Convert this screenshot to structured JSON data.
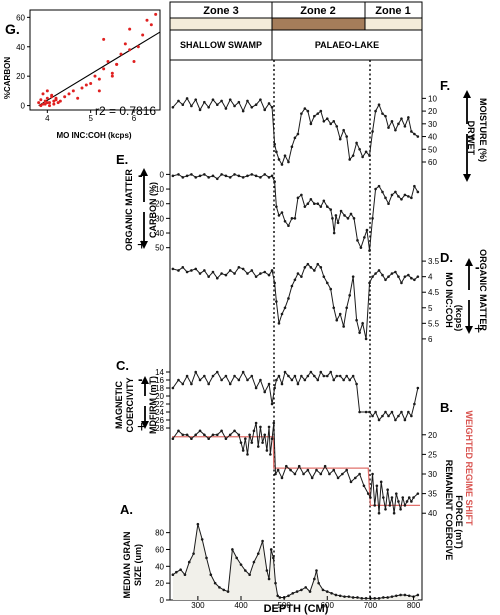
{
  "figure": {
    "zones": [
      {
        "label": "Zone 3",
        "depth_range": [
          240,
          475
        ]
      },
      {
        "label": "Zone 2",
        "depth_range": [
          475,
          695
        ]
      },
      {
        "label": "Zone 1",
        "depth_range": [
          695,
          815
        ]
      }
    ],
    "environments": [
      {
        "label": "SHALLOW SWAMP",
        "depth_range": [
          240,
          475
        ]
      },
      {
        "label": "PALAEO-LAKE",
        "depth_range": [
          475,
          815
        ]
      }
    ],
    "zone_boundaries_cm": [
      475,
      695
    ],
    "x_axis": {
      "label": "DEPTH (CM)",
      "range": [
        240,
        815
      ],
      "ticks": [
        "300",
        "400",
        "500",
        "600",
        "700",
        "800"
      ]
    }
  },
  "chart_data": [
    {
      "id": "F",
      "panel_letter": "F.",
      "type": "line",
      "label_lines": [
        "DRY",
        "MOISTURE (%)",
        "WET"
      ],
      "ylim": [
        60,
        5
      ],
      "y_ticks": [
        "10",
        "20",
        "30",
        "40",
        "50",
        "60"
      ],
      "x": [
        242,
        255,
        265,
        275,
        285,
        295,
        305,
        315,
        325,
        335,
        345,
        355,
        365,
        375,
        385,
        395,
        405,
        415,
        425,
        435,
        445,
        455,
        465,
        472,
        478,
        482,
        488,
        495,
        502,
        510,
        518,
        525,
        532,
        540,
        548,
        555,
        562,
        570,
        578,
        585,
        592,
        600,
        608,
        615,
        622,
        630,
        638,
        645,
        652,
        660,
        668,
        675,
        682,
        690,
        698,
        705,
        712,
        720,
        728,
        735,
        742,
        750,
        758,
        765,
        772,
        780,
        788,
        795,
        802,
        810
      ],
      "values": [
        17,
        12,
        15,
        10,
        16,
        11,
        19,
        13,
        17,
        11,
        15,
        12,
        18,
        11,
        16,
        13,
        20,
        12,
        17,
        15,
        11,
        19,
        14,
        17,
        46,
        52,
        58,
        62,
        55,
        60,
        48,
        41,
        38,
        22,
        18,
        20,
        30,
        24,
        22,
        20,
        28,
        26,
        30,
        28,
        32,
        42,
        35,
        40,
        58,
        55,
        45,
        50,
        56,
        52,
        55,
        36,
        20,
        15,
        22,
        24,
        33,
        28,
        35,
        30,
        26,
        32,
        25,
        36,
        38,
        40
      ]
    },
    {
      "id": "E",
      "panel_letter": "E.",
      "type": "line",
      "label_lines": [
        "ORGANIC MATTER",
        "CARBON (%)"
      ],
      "ylim": [
        55,
        -3
      ],
      "y_ticks": [
        "0",
        "10",
        "20",
        "30",
        "40",
        "50"
      ],
      "x": [
        242,
        255,
        265,
        275,
        285,
        295,
        305,
        315,
        325,
        335,
        345,
        355,
        365,
        375,
        385,
        395,
        405,
        415,
        425,
        435,
        445,
        455,
        465,
        472,
        478,
        482,
        488,
        495,
        502,
        510,
        518,
        525,
        532,
        540,
        548,
        555,
        562,
        570,
        578,
        585,
        592,
        600,
        608,
        612,
        616,
        620,
        625,
        632,
        640,
        648,
        655,
        662,
        670,
        678,
        686,
        692,
        698,
        705,
        712,
        720,
        728,
        735,
        742,
        750,
        758,
        765,
        772,
        780,
        788,
        795,
        802,
        810
      ],
      "values": [
        1,
        0,
        2,
        1,
        0,
        2,
        1,
        0,
        2,
        1,
        3,
        0,
        1,
        2,
        0,
        1,
        2,
        1,
        0,
        1,
        2,
        0,
        2,
        1,
        5,
        22,
        28,
        26,
        32,
        35,
        30,
        30,
        16,
        14,
        22,
        20,
        17,
        20,
        20,
        22,
        18,
        22,
        24,
        30,
        40,
        28,
        33,
        25,
        28,
        30,
        27,
        30,
        45,
        50,
        43,
        38,
        52,
        30,
        10,
        8,
        12,
        16,
        20,
        14,
        12,
        15,
        17,
        14,
        15,
        16,
        8,
        12
      ]
    },
    {
      "id": "D",
      "panel_letter": "D.",
      "type": "line",
      "label_lines": [
        "ORGANIC MATTER",
        "MO INC:COH",
        "(kcps)"
      ],
      "ylim": [
        6.1,
        3.4
      ],
      "y_ticks": [
        "3.5",
        "4",
        "4.5",
        "5",
        "5.5",
        "6"
      ],
      "x": [
        242,
        255,
        265,
        275,
        285,
        295,
        305,
        315,
        325,
        335,
        345,
        355,
        365,
        375,
        385,
        395,
        405,
        415,
        425,
        435,
        445,
        455,
        465,
        472,
        478,
        482,
        488,
        495,
        502,
        510,
        518,
        525,
        532,
        540,
        548,
        555,
        562,
        570,
        578,
        585,
        592,
        600,
        608,
        615,
        622,
        630,
        638,
        645,
        652,
        660,
        668,
        675,
        682,
        690,
        698,
        705,
        712,
        720,
        728,
        735,
        742,
        750,
        758,
        765,
        772,
        780,
        788,
        795,
        802,
        810
      ],
      "values": [
        3.75,
        3.8,
        3.7,
        3.85,
        3.8,
        3.75,
        3.9,
        3.8,
        4.0,
        3.85,
        4.05,
        3.9,
        3.95,
        3.8,
        3.9,
        3.7,
        3.75,
        3.9,
        3.8,
        4.0,
        3.9,
        3.85,
        3.95,
        3.8,
        4.2,
        4.8,
        5.5,
        5.2,
        5.0,
        4.7,
        4.3,
        4.1,
        3.9,
        4.0,
        3.7,
        3.6,
        3.7,
        3.8,
        3.6,
        3.7,
        4.0,
        4.2,
        4.4,
        5.0,
        5.4,
        5.2,
        5.6,
        5.0,
        4.6,
        4.0,
        5.4,
        5.8,
        5.5,
        6.0,
        4.2,
        4.0,
        3.9,
        3.8,
        3.95,
        4.1,
        4.0,
        3.9,
        3.85,
        4.0,
        4.2,
        4.0,
        3.95,
        4.05,
        4.1,
        4.0
      ]
    },
    {
      "id": "C",
      "panel_letter": "C.",
      "type": "line",
      "label_lines": [
        "MAGNETIC",
        "COERCIVITY",
        "MDFIRM (mT)"
      ],
      "ylim": [
        29,
        13
      ],
      "y_ticks": [
        "14",
        "16",
        "18",
        "20",
        "22",
        "24",
        "26",
        "28"
      ],
      "x": [
        242,
        255,
        265,
        275,
        285,
        295,
        305,
        315,
        325,
        335,
        345,
        355,
        365,
        375,
        385,
        395,
        405,
        415,
        425,
        435,
        445,
        455,
        465,
        472,
        478,
        482,
        488,
        495,
        502,
        510,
        518,
        525,
        532,
        540,
        548,
        555,
        562,
        570,
        578,
        585,
        592,
        600,
        608,
        615,
        622,
        630,
        638,
        645,
        652,
        660,
        668,
        675,
        690,
        698,
        705,
        712,
        720,
        728,
        735,
        742,
        750,
        758,
        765,
        772,
        780,
        788,
        795,
        802,
        810
      ],
      "values": [
        18,
        16,
        17,
        15,
        17,
        14,
        16,
        15,
        17,
        15,
        14,
        16,
        15,
        17,
        15,
        16,
        14,
        16,
        15,
        18,
        16,
        19,
        17,
        22,
        18,
        16,
        15,
        17,
        14,
        15,
        16,
        15,
        17,
        15,
        16,
        15,
        14,
        15,
        16,
        14,
        15,
        15,
        14,
        16,
        15,
        15,
        16,
        15,
        16,
        15,
        17,
        24,
        24,
        24,
        25,
        24,
        26,
        25,
        24,
        25,
        24,
        26,
        25,
        24,
        26,
        24,
        25,
        22,
        18
      ]
    },
    {
      "id": "B",
      "panel_letter": "B.",
      "type": "line",
      "label_lines": [
        "REMANENT COERCIVE",
        "FORCE (mT)"
      ],
      "annotation": "WEIGHTED REGIME SHIFT",
      "ylim": [
        43,
        17
      ],
      "y_ticks": [
        "20",
        "25",
        "30",
        "35",
        "40"
      ],
      "x": [
        242,
        255,
        265,
        275,
        285,
        295,
        305,
        315,
        325,
        335,
        345,
        355,
        365,
        375,
        385,
        395,
        400,
        405,
        410,
        415,
        420,
        425,
        430,
        435,
        440,
        445,
        450,
        455,
        460,
        465,
        468,
        472,
        476,
        480,
        486,
        495,
        505,
        515,
        525,
        535,
        545,
        555,
        565,
        575,
        585,
        595,
        605,
        615,
        625,
        635,
        645,
        655,
        665,
        675,
        685,
        695,
        700,
        705,
        710,
        715,
        720,
        725,
        730,
        735,
        740,
        745,
        750,
        755,
        760,
        765,
        770,
        775,
        780,
        785,
        790,
        795,
        800,
        810
      ],
      "values": [
        21,
        19,
        20,
        20,
        21,
        20,
        19,
        20,
        21,
        20,
        20,
        19,
        21,
        20,
        19,
        20,
        22,
        24,
        21,
        25,
        20,
        22,
        19,
        17,
        23,
        18,
        22,
        20,
        24,
        18,
        25,
        21,
        17,
        30,
        29,
        31,
        28,
        29,
        30,
        28,
        30,
        29,
        31,
        29,
        30,
        28,
        30,
        29,
        31,
        30,
        29,
        32,
        31,
        30,
        33,
        35,
        36,
        30,
        38,
        33,
        40,
        32,
        36,
        39,
        34,
        38,
        36,
        40,
        35,
        37,
        39,
        36,
        38,
        37,
        36,
        37,
        36,
        35
      ],
      "regime_shift": {
        "x": [
          240,
          475,
          476,
          695,
          700,
          815
        ],
        "values": [
          20.5,
          20.5,
          28.5,
          28.5,
          38,
          38
        ]
      }
    },
    {
      "id": "A",
      "panel_letter": "A.",
      "type": "area",
      "label_lines": [
        "MEDIAN GRAIN",
        "SIZE (um)"
      ],
      "ylim": [
        0,
        95
      ],
      "y_ticks": [
        "0",
        "20",
        "40",
        "60",
        "80"
      ],
      "x": [
        242,
        250,
        260,
        270,
        280,
        290,
        300,
        310,
        320,
        330,
        340,
        350,
        360,
        370,
        380,
        390,
        400,
        410,
        420,
        430,
        440,
        450,
        460,
        465,
        470,
        475,
        480,
        485,
        490,
        500,
        510,
        520,
        530,
        540,
        550,
        560,
        570,
        575,
        580,
        590,
        600,
        610,
        620,
        630,
        640,
        650,
        660,
        670,
        680,
        690,
        700,
        710,
        720,
        730,
        740,
        750,
        760,
        770,
        780,
        790,
        800,
        810
      ],
      "values": [
        30,
        33,
        36,
        30,
        45,
        55,
        90,
        72,
        50,
        30,
        20,
        15,
        12,
        10,
        60,
        50,
        42,
        35,
        30,
        45,
        55,
        70,
        35,
        25,
        60,
        50,
        20,
        5,
        3,
        3,
        5,
        8,
        10,
        12,
        15,
        10,
        25,
        35,
        20,
        12,
        10,
        8,
        6,
        5,
        4,
        4,
        3,
        3,
        2,
        2,
        2,
        2,
        2,
        3,
        3,
        4,
        5,
        6,
        6,
        5,
        4,
        6
      ]
    },
    {
      "id": "G",
      "panel_letter": "G.",
      "type": "scatter",
      "xlabel": "MO INC:COH (kcps)",
      "ylabel": "%CARBON",
      "x_ticks": [
        "4",
        "5",
        "6"
      ],
      "y_ticks": [
        "0",
        "20",
        "40",
        "60"
      ],
      "xlim": [
        3.6,
        6.6
      ],
      "ylim": [
        -3,
        65
      ],
      "r2_text": "r2 = 0.7816",
      "trend": {
        "x": [
          3.8,
          6.6
        ],
        "values": [
          0,
          50
        ]
      },
      "x": [
        3.8,
        3.85,
        3.9,
        3.95,
        4.0,
        4.05,
        4.1,
        4.15,
        4.2,
        3.9,
        4.0,
        4.1,
        4.2,
        4.3,
        3.95,
        4.05,
        4.25,
        4.4,
        4.5,
        4.6,
        4.7,
        4.8,
        5.0,
        5.1,
        5.2,
        5.3,
        5.4,
        5.5,
        5.6,
        5.7,
        5.8,
        5.9,
        6.0,
        6.2,
        6.4,
        6.5,
        5.3,
        5.6,
        5.9,
        6.1,
        4.9,
        5.2,
        5.5,
        6.3,
        3.85,
        4.0,
        4.15
      ],
      "values": [
        2,
        4,
        1,
        3,
        5,
        2,
        6,
        3,
        4,
        8,
        10,
        7,
        5,
        3,
        1,
        0,
        2,
        6,
        8,
        10,
        5,
        12,
        15,
        20,
        18,
        25,
        30,
        22,
        28,
        35,
        42,
        38,
        30,
        48,
        55,
        62,
        45,
        28,
        52,
        40,
        14,
        10,
        20,
        58,
        0,
        2,
        1
      ]
    }
  ]
}
